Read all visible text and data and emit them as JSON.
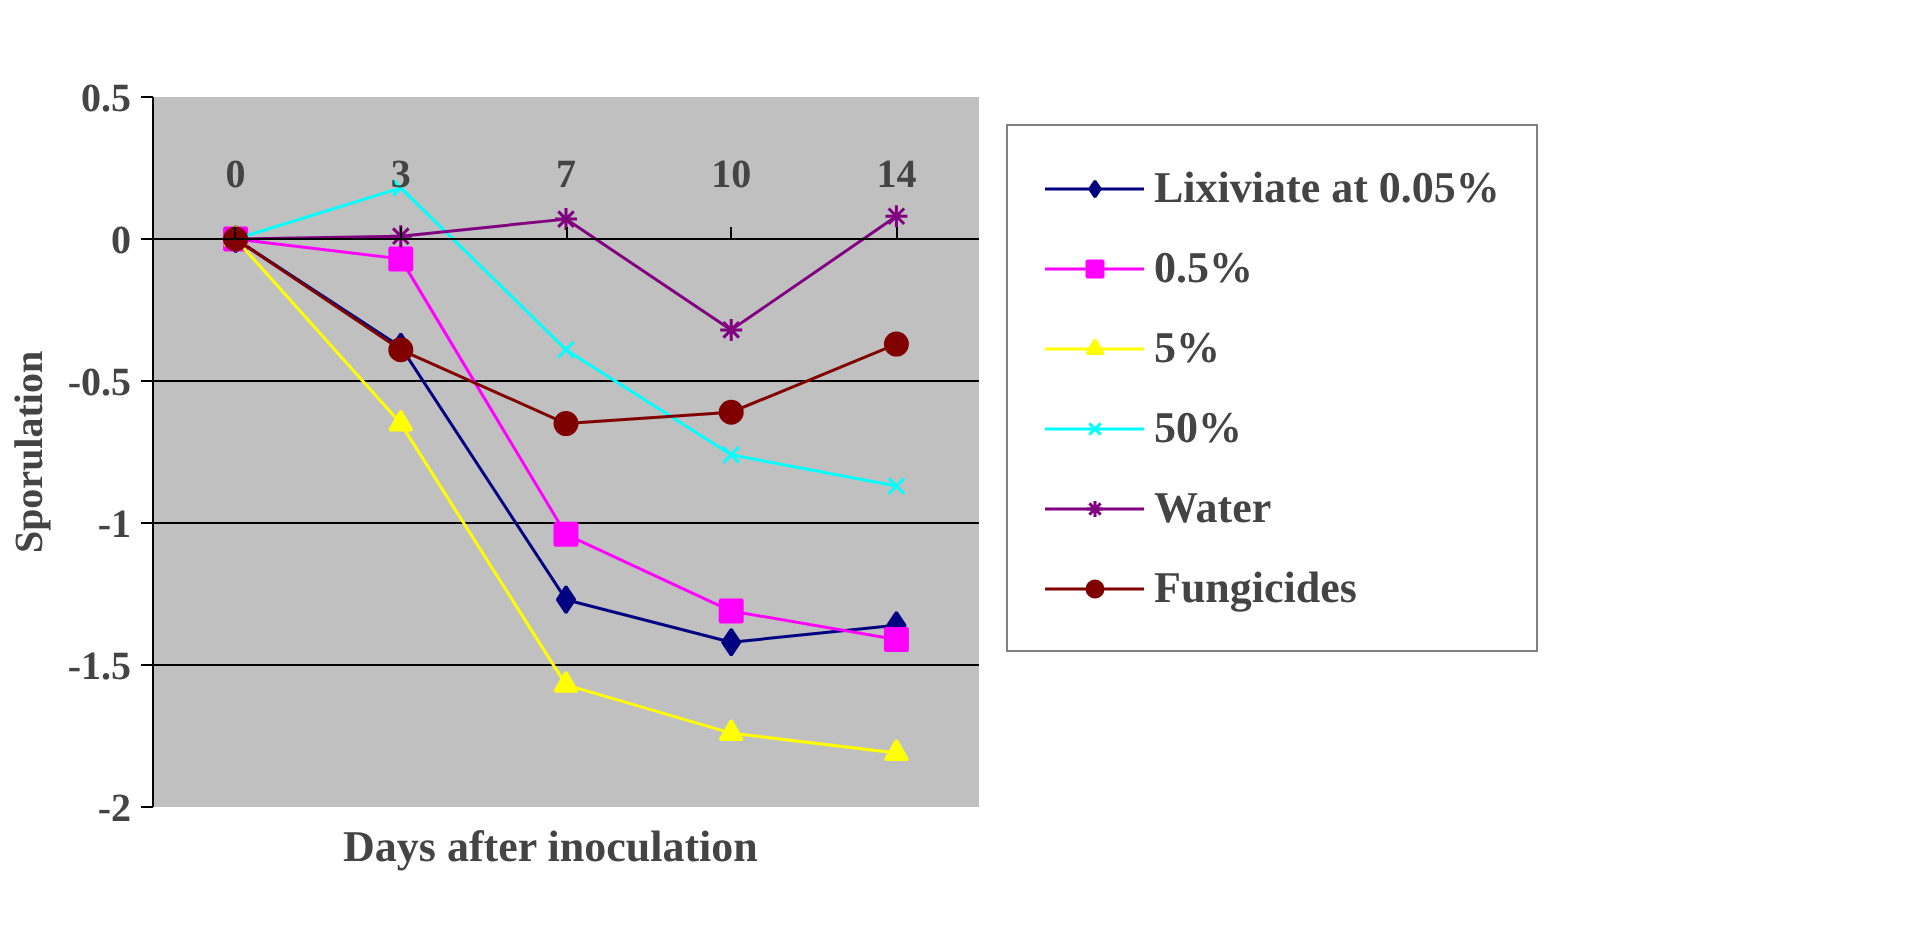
{
  "chart_data": {
    "type": "line",
    "xlabel": "Days after inoculation",
    "ylabel": "Sporulation",
    "categories": [
      "0",
      "3",
      "7",
      "10",
      "14"
    ],
    "ylim": [
      -2,
      0.5
    ],
    "yticks": [
      -2,
      -1.5,
      -1,
      -0.5,
      0,
      0.5
    ],
    "grid": "y",
    "legend": "right",
    "line_style": "solid",
    "series": [
      {
        "name": "Lixiviate at 0.05%",
        "color": "#000080",
        "marker": "diamond",
        "values": [
          0,
          -0.38,
          -1.27,
          -1.42,
          -1.36
        ]
      },
      {
        "name": "0.5%",
        "color": "#ff00ff",
        "marker": "square",
        "values": [
          0,
          -0.07,
          -1.04,
          -1.31,
          -1.41
        ]
      },
      {
        "name": "5%",
        "color": "#ffff00",
        "marker": "triangle",
        "values": [
          0,
          -0.65,
          -1.57,
          -1.74,
          -1.81
        ]
      },
      {
        "name": "50%",
        "color": "#00ffff",
        "marker": "cross",
        "values": [
          0,
          0.18,
          -0.39,
          -0.76,
          -0.87
        ]
      },
      {
        "name": "Water",
        "color": "#800080",
        "marker": "cross",
        "values": [
          0,
          0.01,
          0.07,
          -0.32,
          0.08
        ]
      },
      {
        "name": "Fungicides",
        "color": "#800000",
        "marker": "circle",
        "values": [
          0,
          -0.39,
          -0.65,
          -0.61,
          -0.37
        ]
      }
    ]
  }
}
